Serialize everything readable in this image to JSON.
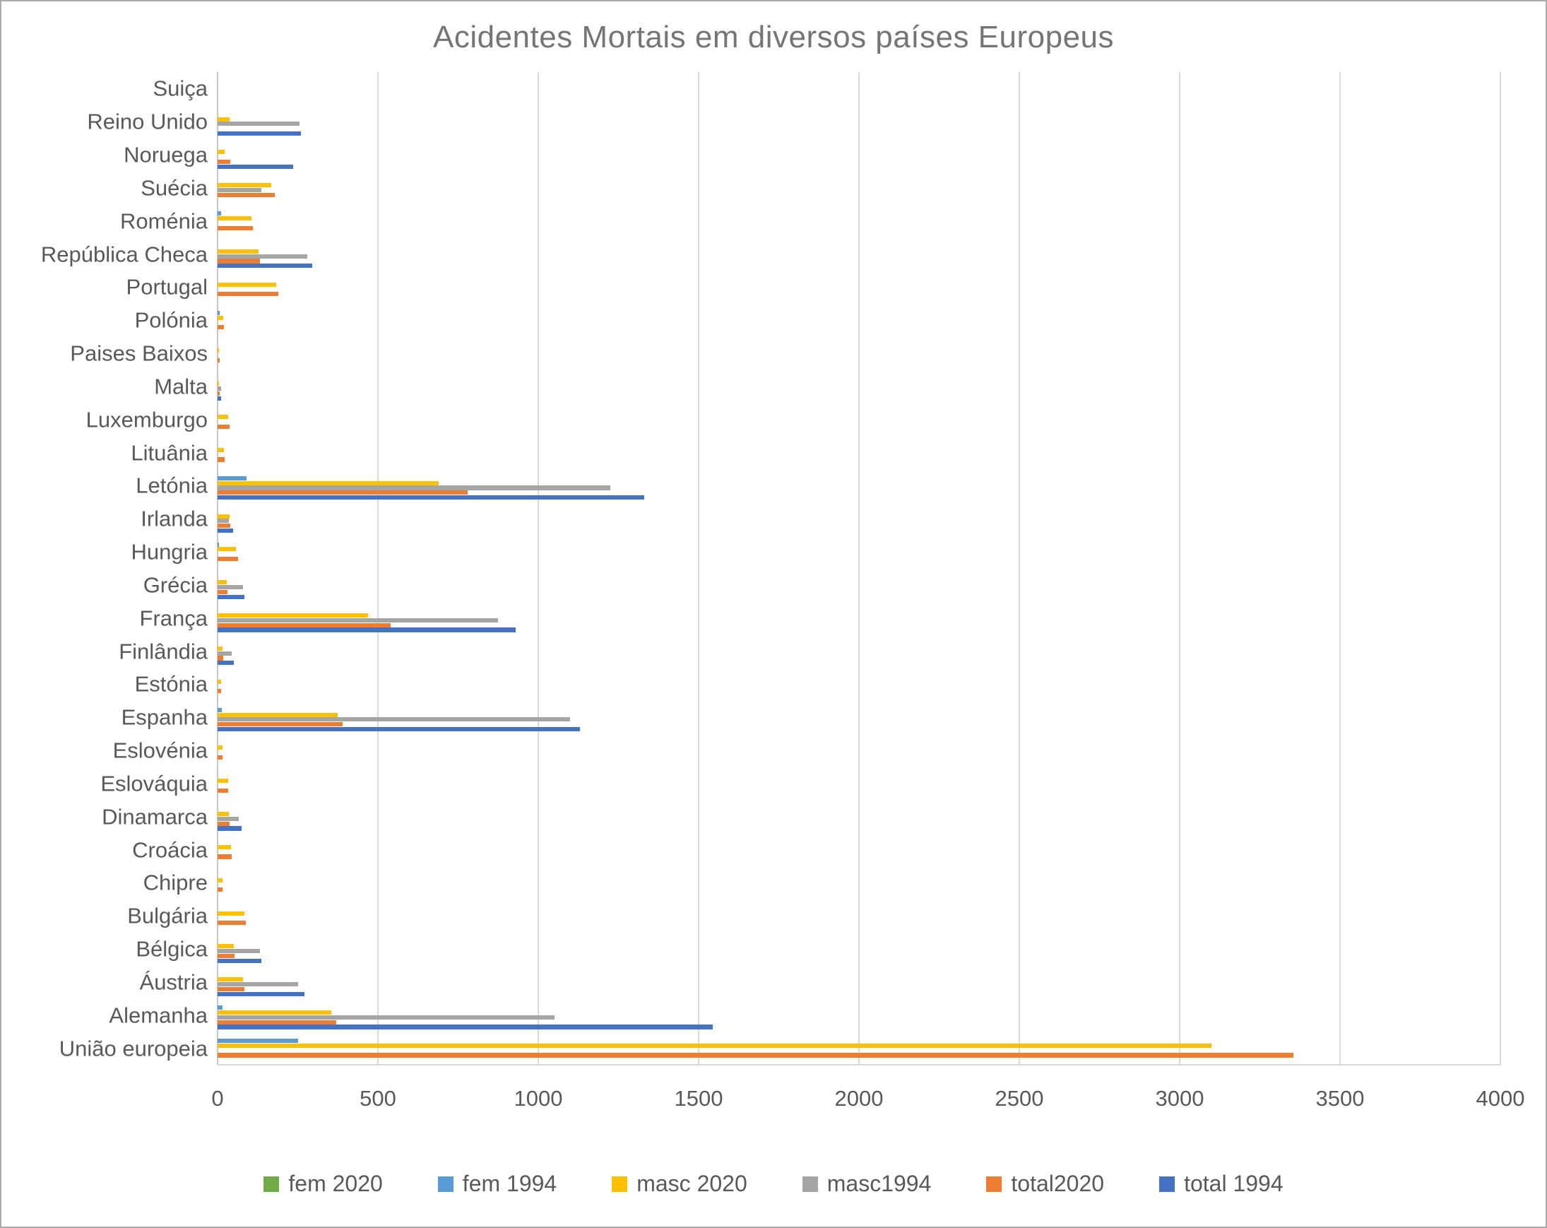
{
  "chart_data": {
    "type": "bar",
    "orientation": "horizontal",
    "title": "Acidentes Mortais em diversos países Europeus",
    "legend_position": "bottom",
    "grid": true,
    "x_axis": {
      "min": 0,
      "max": 4000,
      "tick_step": 500,
      "ticks": [
        0,
        500,
        1000,
        1500,
        2000,
        2500,
        3000,
        3500,
        4000
      ]
    },
    "categories_top_to_bottom": [
      "Suiça",
      "Reino Unido",
      "Noruega",
      "Suécia",
      "Roménia",
      "República Checa",
      "Portugal",
      "Polónia",
      "Paises Baixos",
      "Malta",
      "Luxemburgo",
      "Lituânia",
      "Letónia",
      "Irlanda",
      "Hungria",
      "Grécia",
      "França",
      "Finlândia",
      "Estónia",
      "Espanha",
      "Eslovénia",
      "Eslováquia",
      "Dinamarca",
      "Croácia",
      "Chipre",
      "Bulgária",
      "Bélgica",
      "Áustria",
      "Alemanha",
      "União europeia"
    ],
    "series": [
      {
        "name": "fem 2020",
        "color": "#70AD47",
        "values": [
          0,
          0,
          0,
          0,
          0,
          0,
          0,
          0,
          0,
          0,
          0,
          0,
          0,
          0,
          0,
          0,
          0,
          0,
          0,
          0,
          0,
          0,
          0,
          0,
          0,
          0,
          0,
          0,
          0,
          0
        ]
      },
      {
        "name": "fem 1994",
        "color": "#5B9BD5",
        "values": [
          0,
          0,
          0,
          0,
          10,
          0,
          0,
          7,
          0,
          0,
          0,
          0,
          90,
          0,
          5,
          0,
          0,
          0,
          0,
          14,
          0,
          0,
          0,
          0,
          0,
          0,
          0,
          0,
          16,
          250
        ]
      },
      {
        "name": "masc 2020",
        "color": "#FFC000",
        "values": [
          0,
          38,
          22,
          168,
          105,
          128,
          183,
          18,
          5,
          5,
          33,
          20,
          690,
          38,
          57,
          29,
          470,
          16,
          10,
          375,
          15,
          32,
          36,
          42,
          15,
          83,
          51,
          79,
          355,
          3100
        ]
      },
      {
        "name": "masc1994",
        "color": "#A5A5A5",
        "values": [
          0,
          255,
          0,
          137,
          0,
          280,
          0,
          0,
          0,
          10,
          0,
          0,
          1225,
          35,
          0,
          80,
          875,
          43,
          0,
          1100,
          0,
          0,
          67,
          0,
          0,
          0,
          131,
          251,
          1050,
          0
        ]
      },
      {
        "name": "total2020",
        "color": "#ED7D31",
        "values": [
          0,
          0,
          40,
          178,
          110,
          132,
          190,
          20,
          7,
          6,
          38,
          22,
          780,
          40,
          64,
          31,
          540,
          18,
          10,
          390,
          16,
          32,
          37,
          44,
          15,
          89,
          52,
          84,
          370,
          3355
        ]
      },
      {
        "name": "total 1994",
        "color": "#4472C4",
        "values": [
          0,
          260,
          235,
          0,
          0,
          295,
          0,
          0,
          0,
          11,
          0,
          0,
          1330,
          48,
          0,
          84,
          930,
          50,
          0,
          1130,
          0,
          0,
          74,
          0,
          0,
          0,
          137,
          271,
          1545,
          0
        ]
      }
    ]
  }
}
